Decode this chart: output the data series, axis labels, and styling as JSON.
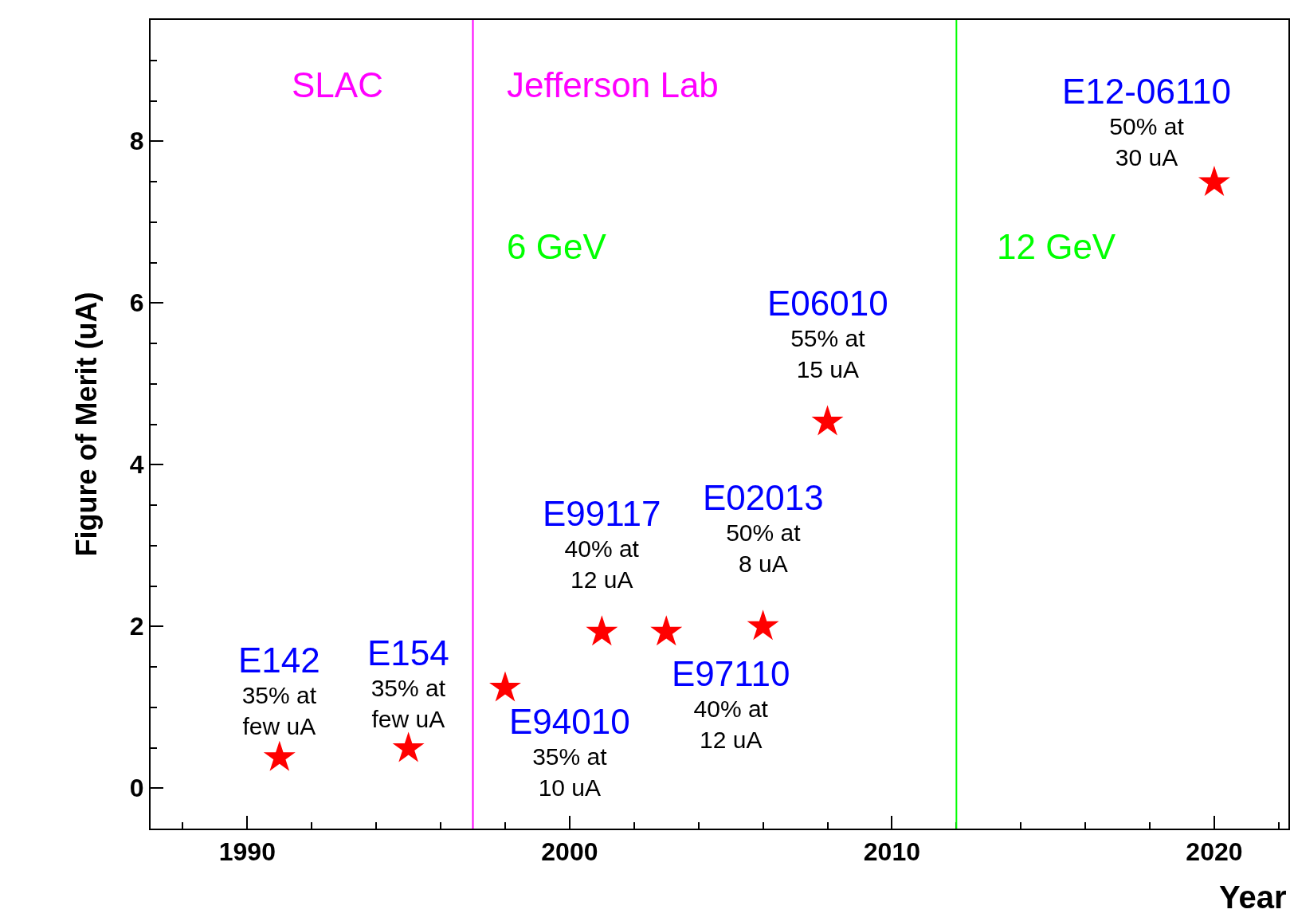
{
  "chart_data": {
    "type": "scatter",
    "xlabel": "Year",
    "ylabel": "Figure of Merit (uA)",
    "x": [
      1991,
      1995,
      1998,
      2001,
      2003,
      2006,
      2008,
      2020
    ],
    "series": [
      {
        "color": "#ff0000",
        "values": [
          0.38,
          0.49,
          1.24,
          1.93,
          1.93,
          2.0,
          4.53,
          7.49
        ]
      }
    ],
    "marker": "star",
    "xlim": [
      1987,
      2022.3
    ],
    "ylim": [
      -0.5,
      9.5
    ],
    "xticks": [
      1990,
      2000,
      2010,
      2020
    ],
    "yticks": [
      0,
      2,
      4,
      6,
      8
    ],
    "ref_lines": [
      {
        "axis": "x",
        "value": 1997,
        "color": "#ff00ff"
      },
      {
        "axis": "x",
        "value": 2012,
        "color": "#00ff00"
      }
    ],
    "annotations": [
      "SLAC",
      "Jefferson Lab",
      "6 GeV",
      "12 GeV",
      {
        "text": "E142\n35% at\nfew uA",
        "x": 1991,
        "y": 0.38
      },
      {
        "text": "E154\n35% at\nfew uA",
        "x": 1995,
        "y": 0.49
      },
      {
        "text": "E94010\n35% at\n10 uA",
        "x": 1998,
        "y": 1.24
      },
      {
        "text": "E99117\n40% at\n12 uA",
        "x": 2001,
        "y": 1.93
      },
      {
        "text": "E97110\n40% at\n12 uA",
        "x": 2003,
        "y": 1.93
      },
      {
        "text": "E02013\n50% at\n8 uA",
        "x": 2006,
        "y": 2.0
      },
      {
        "text": "E06010\n55% at\n15 uA",
        "x": 2008,
        "y": 4.53
      },
      {
        "text": "E12-06110\n50% at\n30 uA",
        "x": 2020,
        "y": 7.49
      }
    ]
  }
}
